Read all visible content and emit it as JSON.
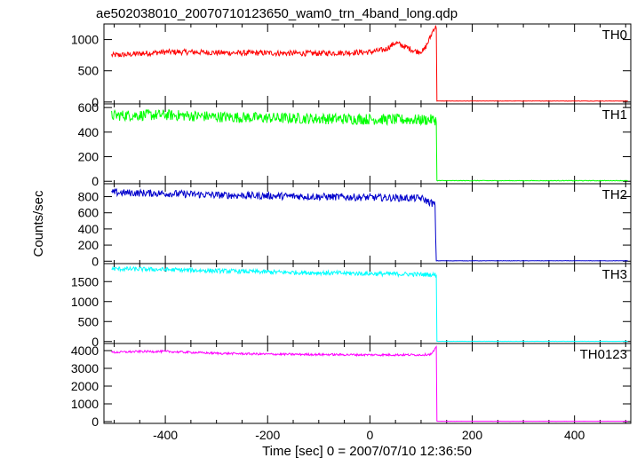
{
  "title": "ae502038010_20070710123650_wam0_trn_4band_long.qdp",
  "ylabel": "Counts/sec",
  "xlabel": "Time [sec] 0 = 2007/07/10 12:36:50",
  "chart_data": {
    "type": "line",
    "x_range": [
      -520,
      510
    ],
    "x_ticks": [
      -400,
      -200,
      0,
      200,
      400
    ],
    "panels": [
      {
        "name": "TH0",
        "color": "#ff0000",
        "ylim": [
          -30,
          1250
        ],
        "y_ticks": [
          0,
          500,
          1000
        ],
        "x": [
          -505,
          -480,
          -450,
          -400,
          -350,
          -300,
          -250,
          -200,
          -150,
          -100,
          -50,
          0,
          30,
          50,
          70,
          90,
          105,
          115,
          125,
          130,
          131,
          505
        ],
        "y": [
          750,
          755,
          775,
          800,
          800,
          790,
          785,
          785,
          780,
          780,
          790,
          800,
          840,
          950,
          880,
          810,
          820,
          980,
          1180,
          1200,
          15,
          15
        ],
        "noise": 45
      },
      {
        "name": "TH1",
        "color": "#00ff00",
        "ylim": [
          -20,
          630
        ],
        "y_ticks": [
          0,
          200,
          400,
          600
        ],
        "x": [
          -505,
          -400,
          -300,
          -200,
          -100,
          0,
          100,
          130,
          131,
          505
        ],
        "y": [
          535,
          540,
          525,
          515,
          510,
          505,
          500,
          500,
          5,
          5
        ],
        "noise": 45
      },
      {
        "name": "TH2",
        "color": "#0000cc",
        "ylim": [
          -30,
          960
        ],
        "y_ticks": [
          0,
          200,
          400,
          600,
          800
        ],
        "x": [
          -505,
          -400,
          -300,
          -200,
          -100,
          0,
          100,
          128,
          129,
          505
        ],
        "y": [
          850,
          840,
          820,
          810,
          800,
          790,
          780,
          700,
          5,
          5
        ],
        "noise": 45
      },
      {
        "name": "TH3",
        "color": "#00ffff",
        "ylim": [
          -50,
          1950
        ],
        "y_ticks": [
          0,
          500,
          1000,
          1500
        ],
        "x": [
          -505,
          -400,
          -300,
          -200,
          -100,
          0,
          100,
          130,
          131,
          505
        ],
        "y": [
          1820,
          1800,
          1770,
          1740,
          1720,
          1700,
          1680,
          1670,
          5,
          5
        ],
        "noise": 55
      },
      {
        "name": "TH0123",
        "color": "#ff00ff",
        "ylim": [
          -100,
          4400
        ],
        "y_ticks": [
          0,
          1000,
          2000,
          3000,
          4000
        ],
        "x": [
          -505,
          -450,
          -400,
          -300,
          -200,
          -100,
          0,
          100,
          120,
          128,
          130,
          131,
          505
        ],
        "y": [
          3900,
          3950,
          3950,
          3850,
          3800,
          3780,
          3760,
          3760,
          3800,
          4100,
          4200,
          20,
          20
        ],
        "noise": 60
      }
    ]
  }
}
